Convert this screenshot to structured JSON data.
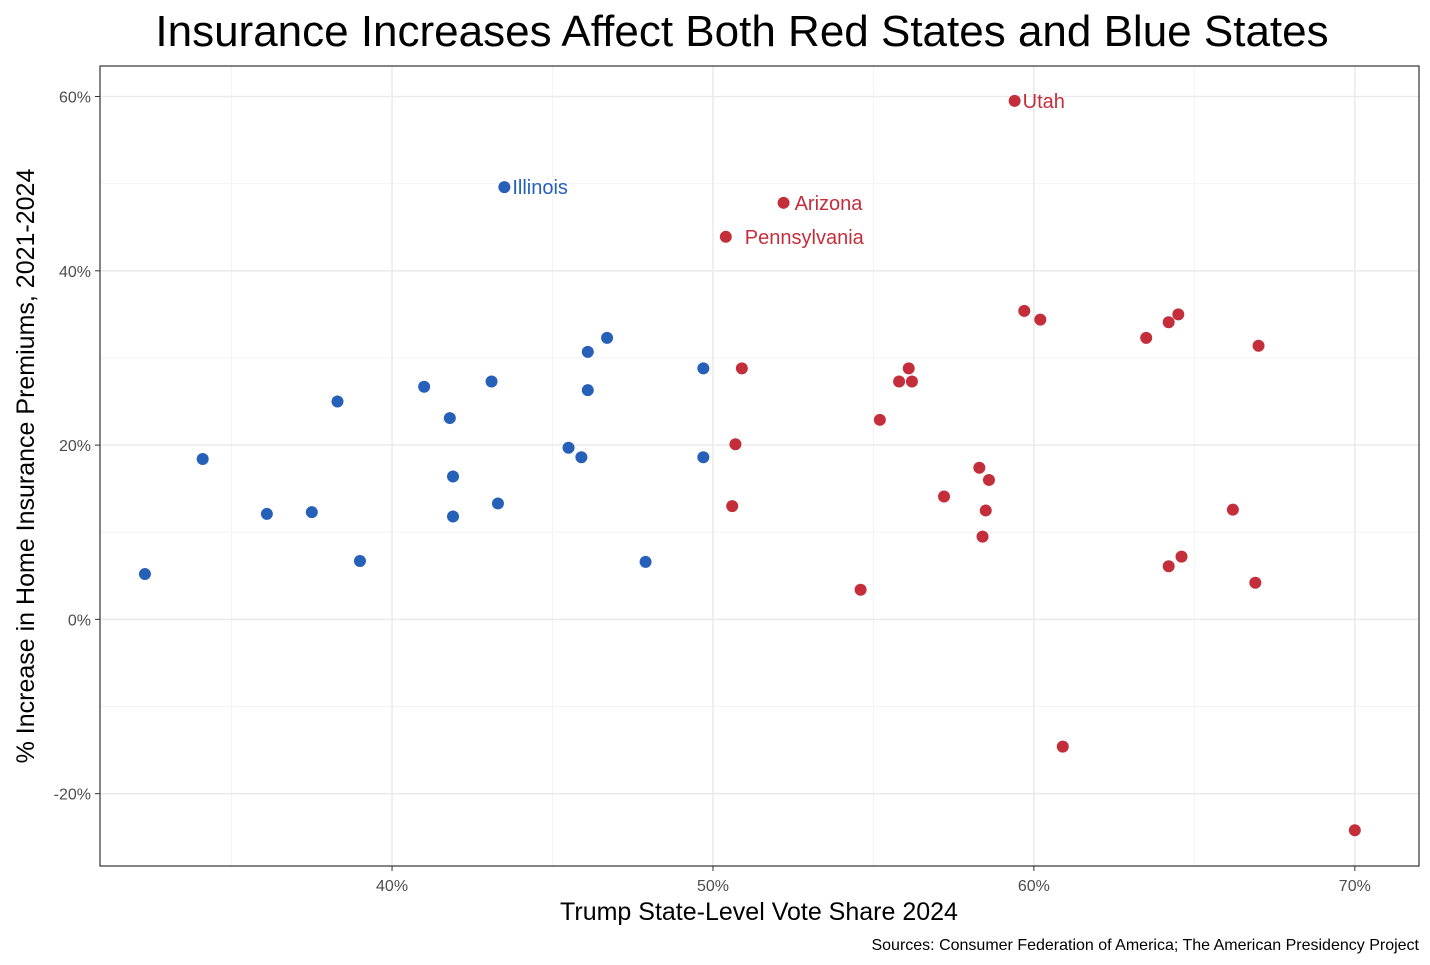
{
  "chart_data": {
    "type": "scatter",
    "title": "Insurance Increases Affect Both Red States and Blue States",
    "xlabel": "Trump State-Level Vote Share 2024",
    "ylabel": "% Increase in Home Insurance Premiums, 2021-2024",
    "caption": "Sources: Consumer Federation of America; The American Presidency Project",
    "xlim": [
      30.9,
      72.0
    ],
    "ylim": [
      -28.3,
      63.5
    ],
    "x_ticks": [
      40,
      50,
      60,
      70
    ],
    "x_tick_labels": [
      "40%",
      "50%",
      "60%",
      "70%"
    ],
    "y_ticks": [
      -20,
      0,
      20,
      40,
      60
    ],
    "y_tick_labels": [
      "-20%",
      "0%",
      "20%",
      "40%",
      "60%"
    ],
    "grid": true,
    "legend": "none",
    "colors": {
      "blue": "#2660b8",
      "red": "#c42e3b",
      "grid_major": "#ebebeb",
      "grid_minor": "#f4f4f4",
      "panel_border": "#333333"
    },
    "series": [
      {
        "color_key": "blue",
        "points": [
          {
            "x": 32.3,
            "y": 5.2
          },
          {
            "x": 34.1,
            "y": 18.4
          },
          {
            "x": 36.1,
            "y": 12.1
          },
          {
            "x": 37.5,
            "y": 12.3
          },
          {
            "x": 38.3,
            "y": 25.0
          },
          {
            "x": 39.0,
            "y": 6.7
          },
          {
            "x": 41.0,
            "y": 26.7
          },
          {
            "x": 41.8,
            "y": 23.1
          },
          {
            "x": 41.9,
            "y": 16.4
          },
          {
            "x": 41.9,
            "y": 11.8
          },
          {
            "x": 43.1,
            "y": 27.3
          },
          {
            "x": 43.3,
            "y": 13.3
          },
          {
            "x": 43.5,
            "y": 49.6,
            "label": "Illinois"
          },
          {
            "x": 45.5,
            "y": 19.7
          },
          {
            "x": 45.9,
            "y": 18.6
          },
          {
            "x": 46.1,
            "y": 30.7
          },
          {
            "x": 46.1,
            "y": 26.3
          },
          {
            "x": 46.7,
            "y": 32.3
          },
          {
            "x": 47.9,
            "y": 6.6
          },
          {
            "x": 49.7,
            "y": 28.8
          },
          {
            "x": 49.7,
            "y": 18.6
          }
        ]
      },
      {
        "color_key": "red",
        "points": [
          {
            "x": 50.4,
            "y": 43.9,
            "label": "Pennsylvania"
          },
          {
            "x": 50.6,
            "y": 13.0
          },
          {
            "x": 50.7,
            "y": 20.1
          },
          {
            "x": 50.9,
            "y": 28.8
          },
          {
            "x": 52.2,
            "y": 47.8,
            "label": "Arizona"
          },
          {
            "x": 54.6,
            "y": 3.4
          },
          {
            "x": 55.2,
            "y": 22.9
          },
          {
            "x": 55.8,
            "y": 27.3
          },
          {
            "x": 56.1,
            "y": 28.8
          },
          {
            "x": 56.2,
            "y": 27.3
          },
          {
            "x": 57.2,
            "y": 14.1
          },
          {
            "x": 58.3,
            "y": 17.4
          },
          {
            "x": 58.4,
            "y": 9.5
          },
          {
            "x": 58.5,
            "y": 12.5
          },
          {
            "x": 58.6,
            "y": 16.0
          },
          {
            "x": 59.4,
            "y": 59.5,
            "label": "Utah"
          },
          {
            "x": 59.7,
            "y": 35.4
          },
          {
            "x": 60.2,
            "y": 34.4
          },
          {
            "x": 60.9,
            "y": -14.6
          },
          {
            "x": 63.5,
            "y": 32.3
          },
          {
            "x": 64.2,
            "y": 34.1
          },
          {
            "x": 64.2,
            "y": 6.1
          },
          {
            "x": 64.5,
            "y": 35.0
          },
          {
            "x": 64.6,
            "y": 7.2
          },
          {
            "x": 66.2,
            "y": 12.6
          },
          {
            "x": 66.9,
            "y": 4.2
          },
          {
            "x": 67.0,
            "y": 31.4
          },
          {
            "x": 70.0,
            "y": -24.2
          }
        ]
      }
    ]
  }
}
